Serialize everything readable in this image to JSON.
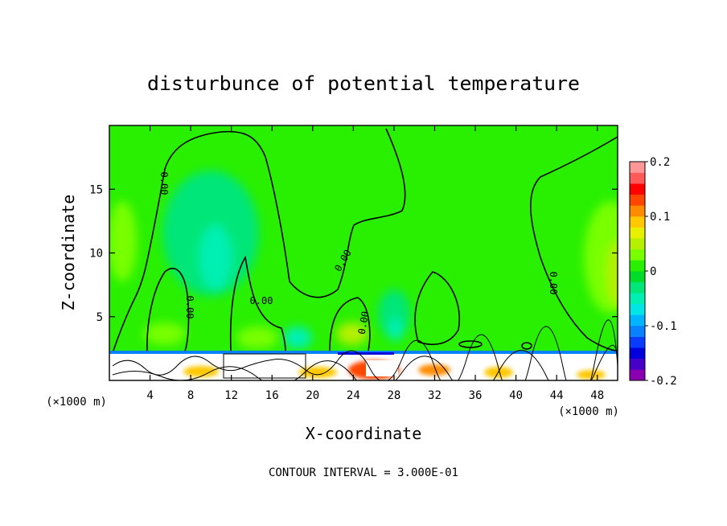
{
  "chart_data": {
    "type": "heatmap",
    "title": "disturbunce of potential temperature",
    "xlabel": "X-coordinate",
    "ylabel": "Z-coordinate",
    "x_unit": "(×1000 m)",
    "x_unit_right": "(×1000 m)",
    "xlim": [
      0,
      50
    ],
    "ylim": [
      0,
      20
    ],
    "x_ticks": [
      4,
      8,
      12,
      16,
      20,
      24,
      28,
      32,
      36,
      40,
      44,
      48
    ],
    "y_ticks": [
      5,
      10,
      15
    ],
    "colorbar": {
      "min": -0.2,
      "max": 0.2,
      "tick_values": [
        0.2,
        0.1,
        0,
        -0.1,
        -0.2
      ],
      "tick_labels": [
        "0.2",
        "0.1",
        "0",
        "-0.1",
        "-0.2"
      ],
      "colors": [
        "#8a00b0",
        "#4600c8",
        "#0000dc",
        "#0a3cff",
        "#0a82ff",
        "#00b4ff",
        "#00e6e6",
        "#00f0b4",
        "#00e678",
        "#00dc28",
        "#28f000",
        "#78ff00",
        "#b4f000",
        "#e6f000",
        "#ffc800",
        "#ff8c00",
        "#ff4600",
        "#ff0000",
        "#ff5a5a",
        "#ff9696"
      ]
    },
    "contour_label": "0.00",
    "contour_interval_text": "CONTOUR INTERVAL = 3.000E-01",
    "contour_interval": 0.3
  }
}
